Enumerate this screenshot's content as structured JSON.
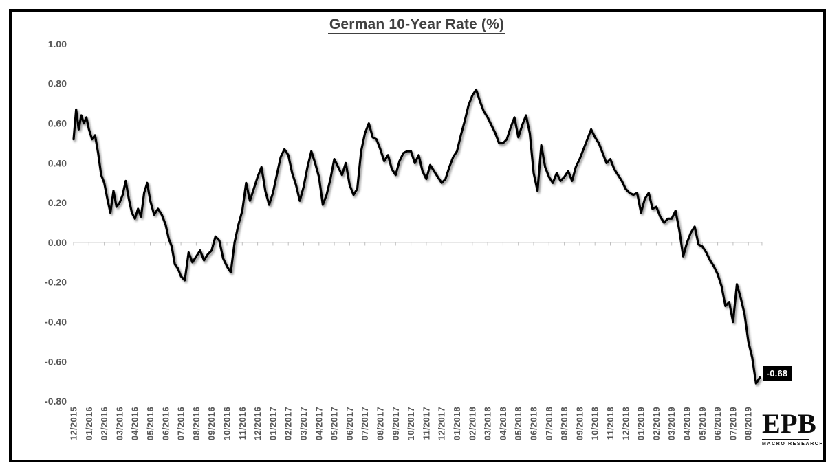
{
  "page": {
    "background": "#ffffff",
    "frame_border_color": "#000000"
  },
  "logo": {
    "name": "EPB",
    "subtitle": "MACRO RESEARCH"
  },
  "chart_data": {
    "type": "line",
    "title": "German 10-Year Rate (%)",
    "series_name": "German 10-Year Rate",
    "unit": "%",
    "ylim": [
      -0.8,
      1.0
    ],
    "ytick_step": 0.2,
    "yticks": [
      "1.00",
      "0.80",
      "0.60",
      "0.40",
      "0.20",
      "0.00",
      "-0.20",
      "-0.40",
      "-0.60",
      "-0.80"
    ],
    "grid": "zero-axis-only",
    "legend": "none",
    "line_color": "#000000",
    "axis_label_color": "#595959",
    "title_color": "#404040",
    "zero_axis_color": "#d9d9d9",
    "tick_color": "#bfbfbf",
    "end_label": {
      "text": "-0.68",
      "value": -0.68,
      "bg": "#000000",
      "color": "#ffffff"
    },
    "months": [
      {
        "label": "12/2015",
        "values": [
          0.52,
          0.67,
          0.57,
          0.64,
          0.6,
          0.63
        ]
      },
      {
        "label": "01/2016",
        "values": [
          0.57,
          0.52,
          0.54,
          0.45,
          0.34
        ]
      },
      {
        "label": "02/2016",
        "values": [
          0.3,
          0.22,
          0.15,
          0.26,
          0.18
        ]
      },
      {
        "label": "03/2016",
        "values": [
          0.2,
          0.24,
          0.31,
          0.22,
          0.15
        ]
      },
      {
        "label": "04/2016",
        "values": [
          0.12,
          0.17,
          0.13,
          0.25,
          0.3
        ]
      },
      {
        "label": "05/2016",
        "values": [
          0.21,
          0.14,
          0.17,
          0.14
        ]
      },
      {
        "label": "06/2016",
        "values": [
          0.09,
          0.02,
          -0.02,
          -0.11,
          -0.13
        ]
      },
      {
        "label": "07/2016",
        "values": [
          -0.17,
          -0.19,
          -0.05,
          -0.1
        ]
      },
      {
        "label": "08/2016",
        "values": [
          -0.07,
          -0.04,
          -0.09,
          -0.06
        ]
      },
      {
        "label": "09/2016",
        "values": [
          -0.04,
          0.03,
          0.01,
          -0.08
        ]
      },
      {
        "label": "10/2016",
        "values": [
          -0.12,
          -0.15,
          0.0,
          0.09
        ]
      },
      {
        "label": "11/2016",
        "values": [
          0.16,
          0.3,
          0.21,
          0.27
        ]
      },
      {
        "label": "12/2016",
        "values": [
          0.33,
          0.38,
          0.26,
          0.19
        ]
      },
      {
        "label": "01/2017",
        "values": [
          0.25,
          0.34,
          0.43,
          0.47
        ]
      },
      {
        "label": "02/2017",
        "values": [
          0.44,
          0.35,
          0.29,
          0.21
        ]
      },
      {
        "label": "03/2017",
        "values": [
          0.28,
          0.38,
          0.46,
          0.4
        ]
      },
      {
        "label": "04/2017",
        "values": [
          0.33,
          0.19,
          0.24,
          0.32
        ]
      },
      {
        "label": "05/2017",
        "values": [
          0.42,
          0.38,
          0.34,
          0.4
        ]
      },
      {
        "label": "06/2017",
        "values": [
          0.29,
          0.24,
          0.27,
          0.46
        ]
      },
      {
        "label": "07/2017",
        "values": [
          0.55,
          0.6,
          0.53,
          0.52
        ]
      },
      {
        "label": "08/2017",
        "values": [
          0.47,
          0.41,
          0.44,
          0.37
        ]
      },
      {
        "label": "09/2017",
        "values": [
          0.34,
          0.41,
          0.45,
          0.46
        ]
      },
      {
        "label": "10/2017",
        "values": [
          0.46,
          0.4,
          0.44,
          0.36
        ]
      },
      {
        "label": "11/2017",
        "values": [
          0.32,
          0.39,
          0.36,
          0.33
        ]
      },
      {
        "label": "12/2017",
        "values": [
          0.3,
          0.32,
          0.38,
          0.43
        ]
      },
      {
        "label": "01/2018",
        "values": [
          0.46,
          0.54,
          0.61,
          0.69
        ]
      },
      {
        "label": "02/2018",
        "values": [
          0.74,
          0.77,
          0.71,
          0.66
        ]
      },
      {
        "label": "03/2018",
        "values": [
          0.63,
          0.59,
          0.55,
          0.5
        ]
      },
      {
        "label": "04/2018",
        "values": [
          0.5,
          0.52,
          0.58,
          0.63
        ]
      },
      {
        "label": "05/2018",
        "values": [
          0.53,
          0.59,
          0.64,
          0.55
        ]
      },
      {
        "label": "06/2018",
        "values": [
          0.35,
          0.26,
          0.49,
          0.38
        ]
      },
      {
        "label": "07/2018",
        "values": [
          0.33,
          0.3,
          0.35,
          0.31
        ]
      },
      {
        "label": "08/2018",
        "values": [
          0.33,
          0.36,
          0.31,
          0.38
        ]
      },
      {
        "label": "09/2018",
        "values": [
          0.42,
          0.47,
          0.52,
          0.57
        ]
      },
      {
        "label": "10/2018",
        "values": [
          0.53,
          0.5,
          0.45,
          0.4
        ]
      },
      {
        "label": "11/2018",
        "values": [
          0.42,
          0.37,
          0.34,
          0.31
        ]
      },
      {
        "label": "12/2018",
        "values": [
          0.27,
          0.25,
          0.24,
          0.25
        ]
      },
      {
        "label": "01/2019",
        "values": [
          0.15,
          0.22,
          0.25,
          0.17
        ]
      },
      {
        "label": "02/2019",
        "values": [
          0.18,
          0.13,
          0.1,
          0.12
        ]
      },
      {
        "label": "03/2019",
        "values": [
          0.12,
          0.16,
          0.06,
          -0.07
        ]
      },
      {
        "label": "04/2019",
        "values": [
          0.0,
          0.05,
          0.08,
          -0.01
        ]
      },
      {
        "label": "05/2019",
        "values": [
          -0.02,
          -0.05,
          -0.09,
          -0.12
        ]
      },
      {
        "label": "06/2019",
        "values": [
          -0.16,
          -0.22,
          -0.32,
          -0.3
        ]
      },
      {
        "label": "07/2019",
        "values": [
          -0.4,
          -0.21,
          -0.28,
          -0.36
        ]
      },
      {
        "label": "08/2019",
        "values": [
          -0.5,
          -0.58,
          -0.71,
          -0.68
        ]
      }
    ]
  }
}
